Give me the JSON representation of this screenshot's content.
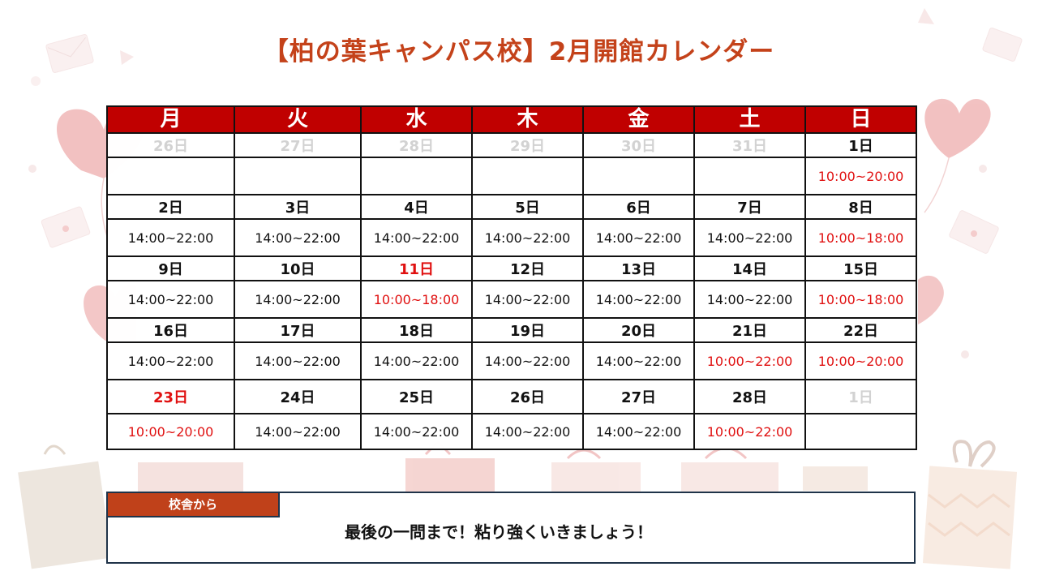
{
  "title": "【柏の葉キャンパス校】2月開館カレンダー",
  "weekdays": [
    "月",
    "火",
    "水",
    "木",
    "金",
    "土",
    "日"
  ],
  "weeks": [
    {
      "days": [
        "26日",
        "27日",
        "28日",
        "29日",
        "30日",
        "31日",
        "1日"
      ],
      "hours": [
        "",
        "",
        "",
        "",
        "",
        "",
        "10:00~20:00"
      ]
    },
    {
      "days": [
        "2日",
        "3日",
        "4日",
        "5日",
        "6日",
        "7日",
        "8日"
      ],
      "hours": [
        "14:00~22:00",
        "14:00~22:00",
        "14:00~22:00",
        "14:00~22:00",
        "14:00~22:00",
        "14:00~22:00",
        "10:00~18:00"
      ]
    },
    {
      "days": [
        "9日",
        "10日",
        "11日",
        "12日",
        "13日",
        "14日",
        "15日"
      ],
      "hours": [
        "14:00~22:00",
        "14:00~22:00",
        "10:00~18:00",
        "14:00~22:00",
        "14:00~22:00",
        "14:00~22:00",
        "10:00~18:00"
      ]
    },
    {
      "days": [
        "16日",
        "17日",
        "18日",
        "19日",
        "20日",
        "21日",
        "22日"
      ],
      "hours": [
        "14:00~22:00",
        "14:00~22:00",
        "14:00~22:00",
        "14:00~22:00",
        "14:00~22:00",
        "10:00~22:00",
        "10:00~20:00"
      ]
    },
    {
      "days": [
        "23日",
        "24日",
        "25日",
        "26日",
        "27日",
        "28日",
        "1日"
      ],
      "hours": [
        "10:00~20:00",
        "14:00~22:00",
        "14:00~22:00",
        "14:00~22:00",
        "14:00~22:00",
        "10:00~22:00",
        ""
      ]
    }
  ],
  "message": {
    "label": "校舎から",
    "text": "最後の一問まで！粘り強くいきましょう！"
  },
  "colors": {
    "title": "#c4421a",
    "header_bg": "#c00000",
    "special_text": "#e01010",
    "out_of_month_text": "#d2d2d2",
    "message_tag_bg": "#c0411a"
  },
  "icons": [
    "heart-balloon-icon",
    "envelope-icon",
    "gift-box-icon"
  ]
}
